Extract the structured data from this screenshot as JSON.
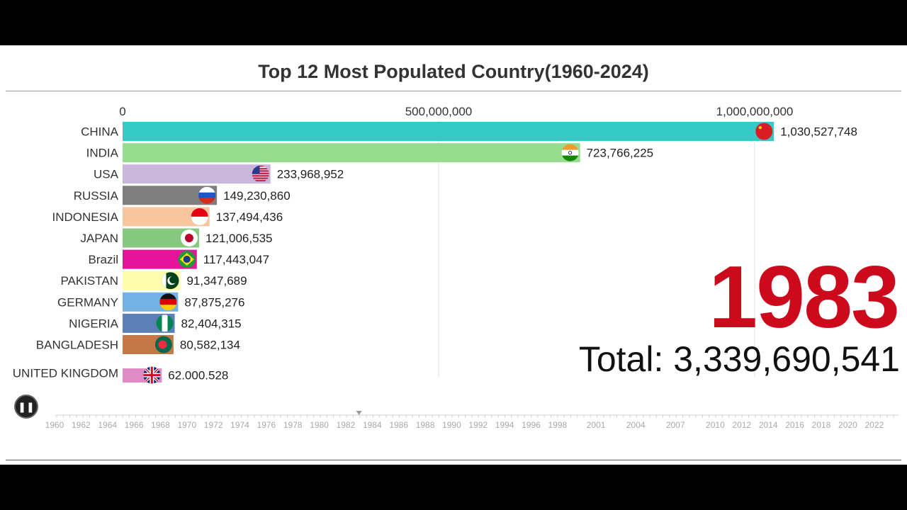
{
  "chart_data": {
    "type": "bar",
    "title": "Top 12 Most Populated Country(1960-2024)",
    "orientation": "horizontal",
    "x_axis": {
      "ticks": [
        "0",
        "500,000,000",
        "1,000,000,000"
      ],
      "tick_values": [
        0,
        500000000,
        1000000000
      ],
      "range": [
        0,
        1000000000
      ]
    },
    "categories": [
      "CHINA",
      "INDIA",
      "USA",
      "RUSSIA",
      "INDONESIA",
      "JAPAN",
      "Brazil",
      "PAKISTAN",
      "GERMANY",
      "NIGERIA",
      "BANGLADESH",
      "UNITED KINGDOM"
    ],
    "values": [
      1030527748,
      723766225,
      233968952,
      149230860,
      137494436,
      121006535,
      117443047,
      91347689,
      87875276,
      82404315,
      80582134,
      62000528
    ],
    "value_labels": [
      "1,030,527,748",
      "723,766,225",
      "233,968,952",
      "149,230,860",
      "137,494,436",
      "121,006,535",
      "117,443,047",
      "91,347,689",
      "87,875,276",
      "82,404,315",
      "80,582,134",
      "62.000.528"
    ],
    "colors": [
      "#35cac6",
      "#97dd90",
      "#c9b6db",
      "#7e7e7e",
      "#f7c69f",
      "#86c97e",
      "#e7149b",
      "#fcfcaa",
      "#74b2e3",
      "#5c7fb7",
      "#c57745",
      "#e08bc4"
    ],
    "flag_icons": [
      "china-flag-icon",
      "india-flag-icon",
      "usa-flag-icon",
      "russia-flag-icon",
      "indonesia-flag-icon",
      "japan-flag-icon",
      "brazil-flag-icon",
      "pakistan-flag-icon",
      "germany-flag-icon",
      "nigeria-flag-icon",
      "bangladesh-flag-icon",
      "uk-flag-icon"
    ],
    "grid": true,
    "current_year": "1983",
    "total_label": "Total: 3,339,690,541"
  },
  "timeline": {
    "labels": [
      "1960",
      "1962",
      "1964",
      "1966",
      "1968",
      "1970",
      "1972",
      "1974",
      "1976",
      "1978",
      "1980",
      "1982",
      "1984",
      "1986",
      "1988",
      "1990",
      "1992",
      "1994",
      "1996",
      "1998",
      "2001",
      "2004",
      "2007",
      "2010",
      "2012",
      "2014",
      "2016",
      "2018",
      "2020",
      "2022"
    ],
    "current_year": 1983
  },
  "controls": {
    "play_icon": "pause-icon"
  }
}
